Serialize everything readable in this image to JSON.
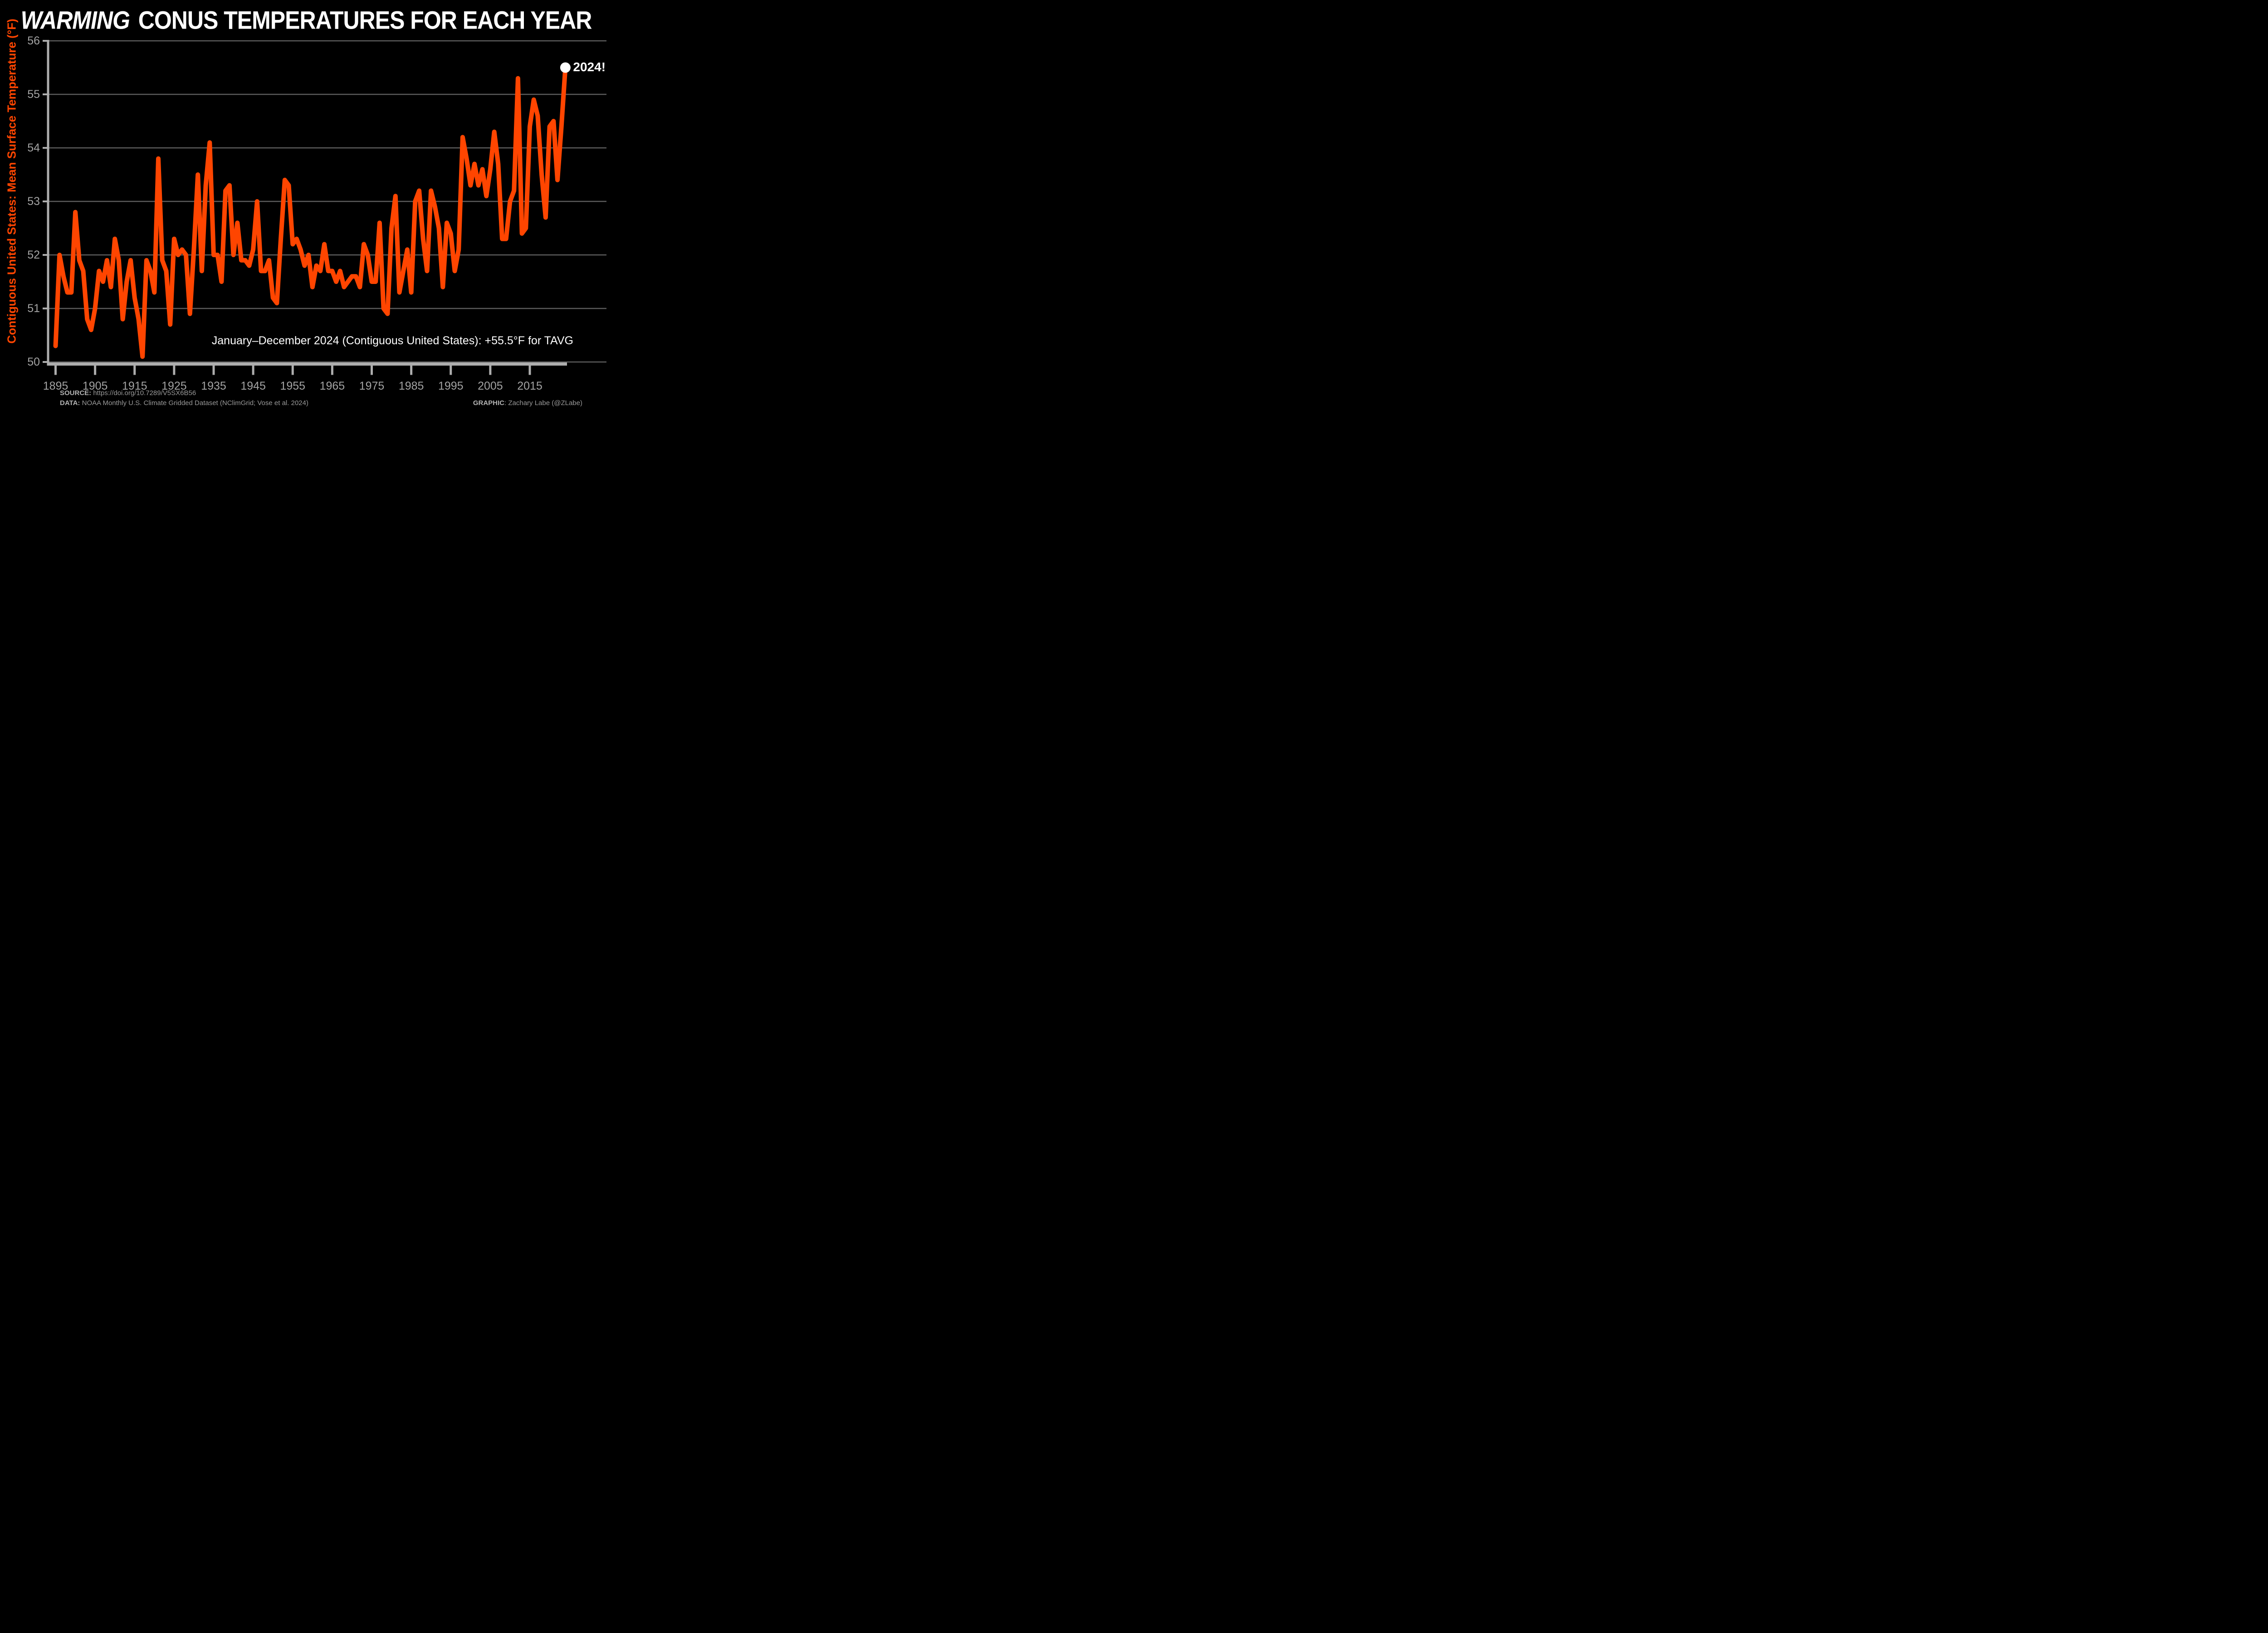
{
  "title": {
    "italic_word": "WARMING",
    "rest": " CONUS TEMPERATURES FOR EACH YEAR"
  },
  "y_axis": {
    "label": "Contiguous United States: Mean Surface Temperature (°F)",
    "ticks": [
      56,
      55,
      54,
      53,
      52,
      51,
      50
    ]
  },
  "x_axis": {
    "ticks": [
      1895,
      1905,
      1915,
      1925,
      1935,
      1945,
      1955,
      1965,
      1975,
      1985,
      1995,
      2005,
      2015
    ]
  },
  "annotation": "January–December 2024 (Contiguous United States):  +55.5°F for TAVG",
  "callout": {
    "label": "2024!",
    "year": 2024,
    "value": 55.5
  },
  "footer": {
    "source_label": "SOURCE:",
    "source_text": " https://doi.org/10.7289/V5SX6B56",
    "data_label": "DATA:",
    "data_text": " NOAA Monthly U.S. Climate Gridded Dataset (NClimGrid; Vose et al. 2024)",
    "graphic_label": "GRAPHIC",
    "graphic_text": ": Zachary Labe (@ZLabe)"
  },
  "colors": {
    "background": "#000000",
    "line": "#ff4500",
    "dot": "#ffffff",
    "grid": "#5c5c5c",
    "spine": "#adadad",
    "tick_text": "#a3a3a3",
    "title_text": "#ffffff",
    "axis_label_text": "#ff4500",
    "annotation_text": "#ffffff",
    "footer_text": "#999999"
  },
  "chart_data": {
    "type": "line",
    "title": "WARMING CONUS TEMPERATURES FOR EACH YEAR",
    "xlabel": "",
    "ylabel": "Contiguous United States: Mean Surface Temperature (°F)",
    "xlim": [
      1895,
      2024
    ],
    "ylim": [
      50,
      56
    ],
    "grid": true,
    "legend": "none",
    "start_year": 1895,
    "end_year": 2024,
    "series_name": "CONUS annual mean surface temperature (°F)",
    "values": [
      50.3,
      52.0,
      51.6,
      51.3,
      51.3,
      52.8,
      51.9,
      51.7,
      50.8,
      50.6,
      51.0,
      51.7,
      51.5,
      51.9,
      51.4,
      52.3,
      51.9,
      50.8,
      51.5,
      51.9,
      51.2,
      50.8,
      50.1,
      51.9,
      51.7,
      51.3,
      53.8,
      51.9,
      51.7,
      50.7,
      52.3,
      52.0,
      52.1,
      52.0,
      50.9,
      52.1,
      53.5,
      51.7,
      53.3,
      54.1,
      52.0,
      52.0,
      51.5,
      53.2,
      53.3,
      52.0,
      52.6,
      51.9,
      51.9,
      51.8,
      52.1,
      53.0,
      51.7,
      51.7,
      51.9,
      51.2,
      51.1,
      52.3,
      53.4,
      53.3,
      52.2,
      52.3,
      52.1,
      51.8,
      52.0,
      51.4,
      51.8,
      51.7,
      52.2,
      51.7,
      51.7,
      51.5,
      51.7,
      51.4,
      51.5,
      51.6,
      51.6,
      51.4,
      52.2,
      52.0,
      51.5,
      51.5,
      52.6,
      51.0,
      50.9,
      52.5,
      53.1,
      51.3,
      51.7,
      52.1,
      51.3,
      53.0,
      53.2,
      52.3,
      51.7,
      53.2,
      52.9,
      52.5,
      51.4,
      52.6,
      52.4,
      51.7,
      52.1,
      54.2,
      53.8,
      53.3,
      53.7,
      53.3,
      53.6,
      53.1,
      53.6,
      54.3,
      53.7,
      52.3,
      52.3,
      53.0,
      53.2,
      55.3,
      52.4,
      52.5,
      54.4,
      54.9,
      54.6,
      53.5,
      52.7,
      54.4,
      54.5,
      53.4,
      54.4,
      55.5
    ],
    "highlight_point": {
      "year": 2024,
      "value": 55.5,
      "label": "2024!"
    },
    "annotation": "January–December 2024 (Contiguous United States):  +55.5°F for TAVG"
  }
}
